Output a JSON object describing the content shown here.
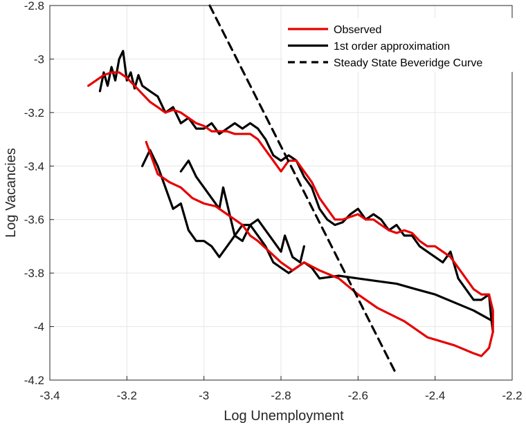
{
  "chart_data": {
    "type": "line",
    "xlabel": "Log Unemployment",
    "ylabel": "Log Vacancies",
    "xlim": [
      -3.4,
      -2.2
    ],
    "ylim": [
      -4.2,
      -2.8
    ],
    "xticks": [
      -3.4,
      -3.2,
      -3.0,
      -2.8,
      -2.6,
      -2.4,
      -2.2
    ],
    "yticks": [
      -4.2,
      -4.0,
      -3.8,
      -3.6,
      -3.4,
      -3.2,
      -3.0,
      -2.8
    ],
    "xtick_labels": [
      "-3.4",
      "-3.2",
      "-3",
      "-2.8",
      "-2.6",
      "-2.4",
      "-2.2"
    ],
    "ytick_labels": [
      "-4.2",
      "-4",
      "-3.8",
      "-3.6",
      "-3.4",
      "-3.2",
      "-3",
      "-2.8"
    ],
    "grid": true,
    "legend_position": "top-right",
    "series": [
      {
        "name": "Observed",
        "color": "#e60000",
        "dash": "solid",
        "segments": [
          [
            [
              -3.3,
              -3.1
            ],
            [
              -3.28,
              -3.08
            ],
            [
              -3.26,
              -3.06
            ],
            [
              -3.24,
              -3.05
            ],
            [
              -3.22,
              -3.05
            ],
            [
              -3.2,
              -3.07
            ],
            [
              -3.18,
              -3.1
            ],
            [
              -3.16,
              -3.13
            ],
            [
              -3.14,
              -3.16
            ],
            [
              -3.12,
              -3.18
            ],
            [
              -3.1,
              -3.2
            ],
            [
              -3.08,
              -3.19
            ],
            [
              -3.06,
              -3.2
            ],
            [
              -3.04,
              -3.22
            ],
            [
              -3.02,
              -3.24
            ],
            [
              -3.0,
              -3.25
            ],
            [
              -2.98,
              -3.27
            ],
            [
              -2.96,
              -3.27
            ],
            [
              -2.94,
              -3.27
            ],
            [
              -2.92,
              -3.28
            ],
            [
              -2.9,
              -3.28
            ],
            [
              -2.88,
              -3.28
            ],
            [
              -2.86,
              -3.3
            ],
            [
              -2.84,
              -3.34
            ],
            [
              -2.82,
              -3.38
            ],
            [
              -2.8,
              -3.42
            ],
            [
              -2.78,
              -3.38
            ],
            [
              -2.76,
              -3.38
            ],
            [
              -2.74,
              -3.42
            ],
            [
              -2.72,
              -3.46
            ],
            [
              -2.7,
              -3.52
            ],
            [
              -2.68,
              -3.56
            ],
            [
              -2.66,
              -3.6
            ],
            [
              -2.64,
              -3.6
            ],
            [
              -2.62,
              -3.59
            ],
            [
              -2.6,
              -3.58
            ],
            [
              -2.58,
              -3.6
            ],
            [
              -2.56,
              -3.6
            ],
            [
              -2.54,
              -3.62
            ],
            [
              -2.52,
              -3.64
            ],
            [
              -2.5,
              -3.65
            ],
            [
              -2.48,
              -3.64
            ],
            [
              -2.46,
              -3.65
            ],
            [
              -2.44,
              -3.68
            ],
            [
              -2.42,
              -3.7
            ],
            [
              -2.4,
              -3.7
            ],
            [
              -2.38,
              -3.72
            ],
            [
              -2.36,
              -3.74
            ],
            [
              -2.34,
              -3.78
            ],
            [
              -2.32,
              -3.82
            ],
            [
              -2.3,
              -3.86
            ],
            [
              -2.28,
              -3.88
            ],
            [
              -2.26,
              -3.88
            ],
            [
              -2.25,
              -3.94
            ],
            [
              -2.25,
              -4.02
            ],
            [
              -2.26,
              -4.08
            ],
            [
              -2.28,
              -4.11
            ],
            [
              -2.3,
              -4.1
            ],
            [
              -2.35,
              -4.07
            ],
            [
              -2.42,
              -4.04
            ],
            [
              -2.48,
              -3.98
            ],
            [
              -2.55,
              -3.93
            ],
            [
              -2.6,
              -3.88
            ],
            [
              -2.65,
              -3.82
            ],
            [
              -2.7,
              -3.79
            ],
            [
              -2.74,
              -3.76
            ],
            [
              -2.77,
              -3.79
            ],
            [
              -2.8,
              -3.76
            ],
            [
              -2.83,
              -3.72
            ],
            [
              -2.86,
              -3.68
            ],
            [
              -2.88,
              -3.66
            ],
            [
              -2.9,
              -3.62
            ],
            [
              -2.92,
              -3.6
            ],
            [
              -2.94,
              -3.58
            ],
            [
              -2.97,
              -3.55
            ],
            [
              -3.0,
              -3.54
            ],
            [
              -3.03,
              -3.52
            ],
            [
              -3.06,
              -3.48
            ],
            [
              -3.09,
              -3.46
            ],
            [
              -3.12,
              -3.43
            ],
            [
              -3.15,
              -3.31
            ]
          ]
        ]
      },
      {
        "name": "1st order approximation",
        "color": "#000000",
        "dash": "solid",
        "segments": [
          [
            [
              -3.27,
              -3.12
            ],
            [
              -3.26,
              -3.05
            ],
            [
              -3.25,
              -3.1
            ],
            [
              -3.24,
              -3.03
            ],
            [
              -3.23,
              -3.08
            ],
            [
              -3.22,
              -3.0
            ],
            [
              -3.21,
              -2.97
            ],
            [
              -3.2,
              -3.08
            ],
            [
              -3.19,
              -3.05
            ],
            [
              -3.18,
              -3.11
            ],
            [
              -3.17,
              -3.06
            ],
            [
              -3.16,
              -3.1
            ],
            [
              -3.14,
              -3.12
            ],
            [
              -3.12,
              -3.14
            ],
            [
              -3.1,
              -3.2
            ],
            [
              -3.08,
              -3.18
            ],
            [
              -3.06,
              -3.24
            ],
            [
              -3.04,
              -3.22
            ],
            [
              -3.02,
              -3.26
            ],
            [
              -3.0,
              -3.26
            ],
            [
              -2.98,
              -3.24
            ],
            [
              -2.96,
              -3.28
            ],
            [
              -2.94,
              -3.26
            ],
            [
              -2.92,
              -3.24
            ],
            [
              -2.9,
              -3.26
            ],
            [
              -2.88,
              -3.24
            ],
            [
              -2.86,
              -3.26
            ],
            [
              -2.84,
              -3.3
            ],
            [
              -2.82,
              -3.36
            ],
            [
              -2.8,
              -3.38
            ],
            [
              -2.78,
              -3.36
            ],
            [
              -2.76,
              -3.38
            ],
            [
              -2.74,
              -3.44
            ],
            [
              -2.72,
              -3.48
            ],
            [
              -2.7,
              -3.56
            ],
            [
              -2.68,
              -3.6
            ],
            [
              -2.66,
              -3.62
            ],
            [
              -2.64,
              -3.61
            ],
            [
              -2.62,
              -3.58
            ],
            [
              -2.6,
              -3.56
            ],
            [
              -2.58,
              -3.6
            ],
            [
              -2.56,
              -3.58
            ],
            [
              -2.54,
              -3.6
            ],
            [
              -2.52,
              -3.64
            ],
            [
              -2.5,
              -3.62
            ],
            [
              -2.48,
              -3.66
            ],
            [
              -2.46,
              -3.66
            ],
            [
              -2.44,
              -3.7
            ],
            [
              -2.42,
              -3.72
            ],
            [
              -2.4,
              -3.74
            ],
            [
              -2.38,
              -3.76
            ],
            [
              -2.36,
              -3.72
            ],
            [
              -2.34,
              -3.82
            ],
            [
              -2.32,
              -3.86
            ],
            [
              -2.3,
              -3.9
            ],
            [
              -2.28,
              -3.9
            ],
            [
              -2.26,
              -3.88
            ],
            [
              -2.255,
              -3.96
            ],
            [
              -2.25,
              -4.02
            ]
          ],
          [
            [
              -3.16,
              -3.4
            ],
            [
              -3.14,
              -3.34
            ],
            [
              -3.12,
              -3.4
            ],
            [
              -3.1,
              -3.48
            ],
            [
              -3.08,
              -3.56
            ],
            [
              -3.06,
              -3.54
            ],
            [
              -3.04,
              -3.64
            ],
            [
              -3.02,
              -3.68
            ],
            [
              -3.0,
              -3.68
            ],
            [
              -2.98,
              -3.7
            ],
            [
              -2.96,
              -3.74
            ],
            [
              -2.94,
              -3.7
            ],
            [
              -2.92,
              -3.66
            ],
            [
              -2.9,
              -3.62
            ],
            [
              -2.88,
              -3.62
            ],
            [
              -2.86,
              -3.66
            ],
            [
              -2.84,
              -3.7
            ],
            [
              -2.82,
              -3.76
            ],
            [
              -2.8,
              -3.78
            ],
            [
              -2.78,
              -3.8
            ],
            [
              -2.76,
              -3.78
            ],
            [
              -2.74,
              -3.76
            ],
            [
              -2.72,
              -3.78
            ],
            [
              -2.7,
              -3.82
            ],
            [
              -2.65,
              -3.81
            ],
            [
              -2.6,
              -3.82
            ],
            [
              -2.55,
              -3.83
            ],
            [
              -2.5,
              -3.84
            ],
            [
              -2.45,
              -3.86
            ],
            [
              -2.4,
              -3.88
            ],
            [
              -2.35,
              -3.91
            ],
            [
              -2.3,
              -3.94
            ],
            [
              -2.25,
              -3.98
            ]
          ],
          [
            [
              -3.06,
              -3.42
            ],
            [
              -3.04,
              -3.38
            ],
            [
              -3.02,
              -3.44
            ],
            [
              -3.0,
              -3.48
            ],
            [
              -2.98,
              -3.52
            ],
            [
              -2.96,
              -3.56
            ],
            [
              -2.95,
              -3.48
            ],
            [
              -2.93,
              -3.6
            ],
            [
              -2.92,
              -3.66
            ],
            [
              -2.9,
              -3.68
            ],
            [
              -2.88,
              -3.62
            ],
            [
              -2.86,
              -3.6
            ],
            [
              -2.84,
              -3.64
            ],
            [
              -2.82,
              -3.68
            ],
            [
              -2.8,
              -3.72
            ],
            [
              -2.79,
              -3.66
            ],
            [
              -2.77,
              -3.74
            ],
            [
              -2.75,
              -3.76
            ],
            [
              -2.74,
              -3.7
            ]
          ]
        ]
      },
      {
        "name": "Steady State Beveridge Curve",
        "color": "#000000",
        "dash": "dashed",
        "segments": [
          [
            [
              -2.985,
              -2.8
            ],
            [
              -2.5,
              -4.18
            ]
          ]
        ]
      }
    ]
  }
}
